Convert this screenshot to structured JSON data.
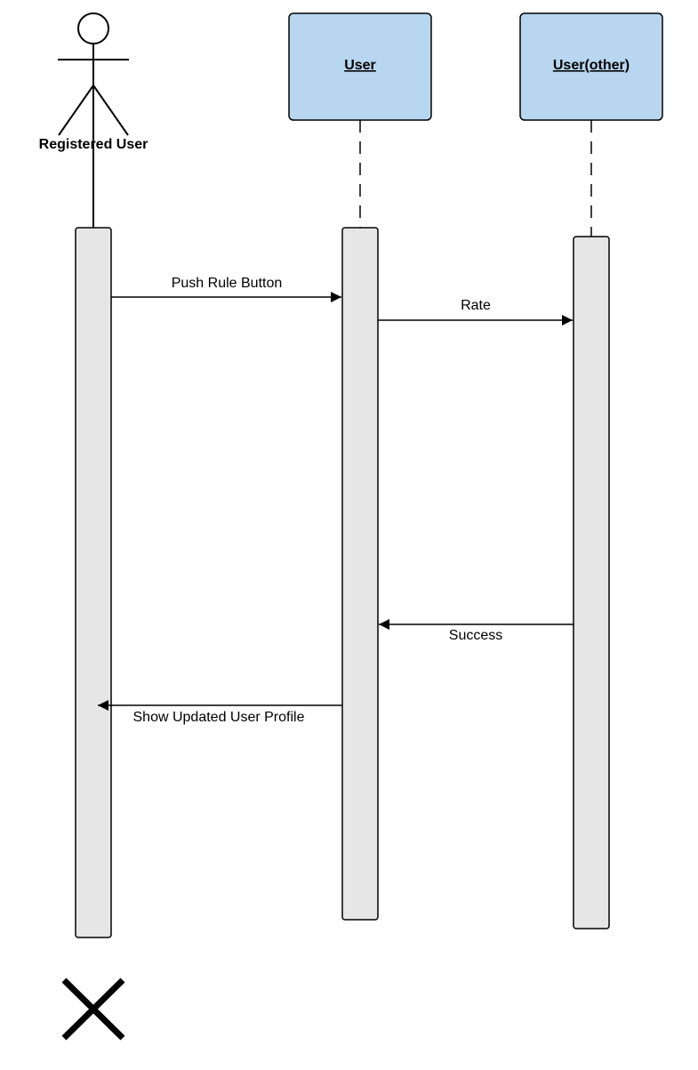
{
  "colors": {
    "participant_fill": "#b8d6f0",
    "activation_fill": "#e6e6e6",
    "stroke": "#000000",
    "background": "#ffffff"
  },
  "actor": {
    "label": "Registered User",
    "icon": "stick-figure-icon"
  },
  "participants": [
    {
      "label": "User"
    },
    {
      "label": "User(other)"
    }
  ],
  "messages": [
    {
      "label": "Push Rule Button",
      "from": "Registered User",
      "to": "User"
    },
    {
      "label": "Rate",
      "from": "User",
      "to": "User(other)"
    },
    {
      "label": "Success",
      "from": "User(other)",
      "to": "User"
    },
    {
      "label": "Show Updated User Profile",
      "from": "User",
      "to": "Registered User"
    }
  ],
  "terminator": {
    "icon": "destroy-x-icon"
  }
}
